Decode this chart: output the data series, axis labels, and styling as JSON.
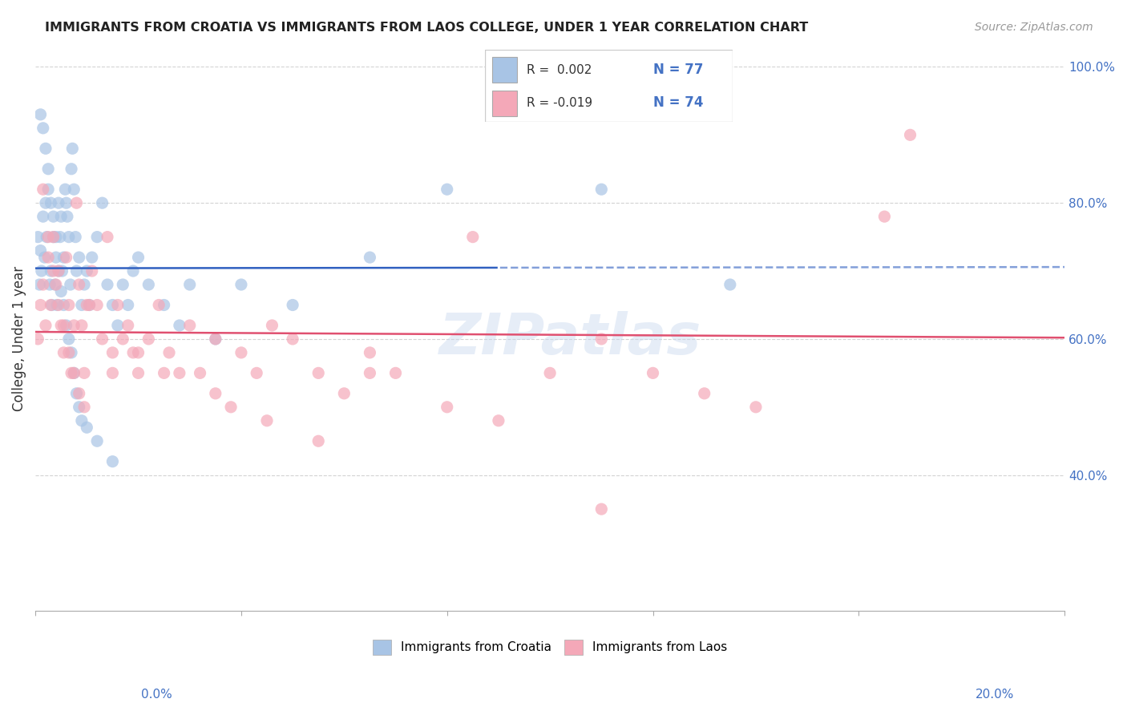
{
  "title": "IMMIGRANTS FROM CROATIA VS IMMIGRANTS FROM LAOS COLLEGE, UNDER 1 YEAR CORRELATION CHART",
  "source": "Source: ZipAtlas.com",
  "ylabel": "College, Under 1 year",
  "xlim": [
    0.0,
    20.0
  ],
  "ylim": [
    20.0,
    100.0
  ],
  "color_croatia": "#a8c4e5",
  "color_laos": "#f4a8b8",
  "line_color_croatia": "#3060c0",
  "line_color_laos": "#e05070",
  "background_color": "#ffffff",
  "grid_color": "#c8c8c8",
  "croatia_x": [
    0.05,
    0.08,
    0.1,
    0.12,
    0.15,
    0.18,
    0.2,
    0.22,
    0.25,
    0.28,
    0.3,
    0.32,
    0.35,
    0.38,
    0.4,
    0.42,
    0.45,
    0.48,
    0.5,
    0.52,
    0.55,
    0.58,
    0.6,
    0.62,
    0.65,
    0.68,
    0.7,
    0.72,
    0.75,
    0.78,
    0.8,
    0.85,
    0.9,
    0.95,
    1.0,
    1.05,
    1.1,
    1.2,
    1.3,
    1.4,
    1.5,
    1.6,
    1.7,
    1.8,
    1.9,
    2.0,
    2.2,
    2.5,
    2.8,
    3.0,
    3.5,
    4.0,
    5.0,
    6.5,
    8.0,
    11.0,
    13.5,
    0.1,
    0.15,
    0.2,
    0.25,
    0.3,
    0.35,
    0.4,
    0.45,
    0.5,
    0.55,
    0.6,
    0.65,
    0.7,
    0.75,
    0.8,
    0.85,
    0.9,
    1.0,
    1.2,
    1.5
  ],
  "croatia_y": [
    75,
    68,
    73,
    70,
    78,
    72,
    80,
    75,
    82,
    68,
    70,
    65,
    75,
    68,
    72,
    65,
    80,
    75,
    78,
    70,
    72,
    82,
    80,
    78,
    75,
    68,
    85,
    88,
    82,
    75,
    70,
    72,
    65,
    68,
    70,
    65,
    72,
    75,
    80,
    68,
    65,
    62,
    68,
    65,
    70,
    72,
    68,
    65,
    62,
    68,
    60,
    68,
    65,
    72,
    82,
    82,
    68,
    93,
    91,
    88,
    85,
    80,
    78,
    75,
    70,
    67,
    65,
    62,
    60,
    58,
    55,
    52,
    50,
    48,
    47,
    45,
    42
  ],
  "laos_x": [
    0.05,
    0.1,
    0.15,
    0.2,
    0.25,
    0.3,
    0.35,
    0.4,
    0.45,
    0.5,
    0.55,
    0.6,
    0.65,
    0.7,
    0.75,
    0.8,
    0.85,
    0.9,
    0.95,
    1.0,
    1.1,
    1.2,
    1.3,
    1.4,
    1.5,
    1.6,
    1.7,
    1.8,
    1.9,
    2.0,
    2.2,
    2.4,
    2.6,
    2.8,
    3.0,
    3.2,
    3.5,
    3.8,
    4.0,
    4.3,
    4.6,
    5.0,
    5.5,
    6.0,
    6.5,
    7.0,
    8.0,
    9.0,
    10.0,
    11.0,
    12.0,
    13.0,
    14.0,
    17.0,
    0.15,
    0.25,
    0.35,
    0.45,
    0.55,
    0.65,
    0.75,
    0.85,
    0.95,
    1.05,
    1.5,
    2.0,
    2.5,
    3.5,
    4.5,
    5.5,
    6.5,
    8.5,
    11.0,
    16.5
  ],
  "laos_y": [
    60,
    65,
    68,
    62,
    72,
    65,
    75,
    68,
    70,
    62,
    58,
    72,
    65,
    55,
    62,
    80,
    68,
    62,
    55,
    65,
    70,
    65,
    60,
    75,
    58,
    65,
    60,
    62,
    58,
    55,
    60,
    65,
    58,
    55,
    62,
    55,
    60,
    50,
    58,
    55,
    62,
    60,
    55,
    52,
    58,
    55,
    50,
    48,
    55,
    60,
    55,
    52,
    50,
    90,
    82,
    75,
    70,
    65,
    62,
    58,
    55,
    52,
    50,
    65,
    55,
    58,
    55,
    52,
    48,
    45,
    55,
    75,
    35,
    78
  ]
}
